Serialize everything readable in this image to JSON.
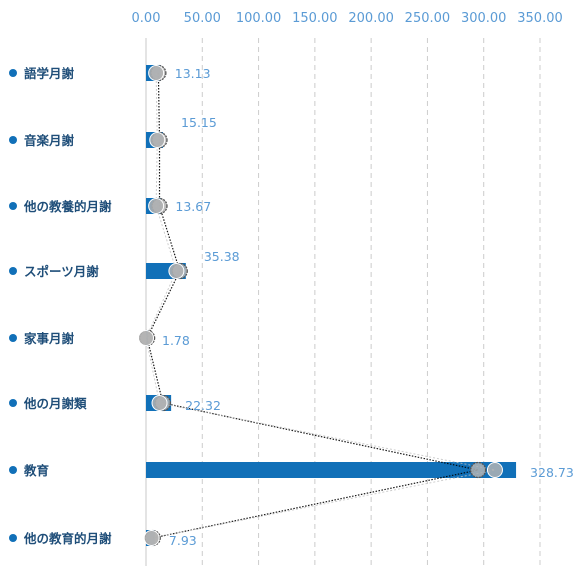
{
  "chart_data": {
    "type": "bar",
    "orientation": "horizontal",
    "categories": [
      "語学月謝",
      "音楽月謝",
      "他の教養的月謝",
      "スポーツ月謝",
      "家事月謝",
      "他の月謝類",
      "教育",
      "他の教育的月謝"
    ],
    "values": [
      13.13,
      15.15,
      13.67,
      35.38,
      1.78,
      22.32,
      328.73,
      7.93
    ],
    "x_ticks": [
      "0.00",
      "50.00",
      "100.00",
      "150.00",
      "200.00",
      "250.00",
      "300.00",
      "350.00"
    ],
    "xlim": [
      0,
      350
    ],
    "x_axis_position": "top",
    "grid": true,
    "bullet": "●",
    "colors": {
      "bar": "#1170b8",
      "tick_text": "#5b9bd5",
      "category_text": "#1f4e79",
      "bullet": "#1170b8",
      "grid": "#cccccc",
      "marker": "#b3b3b3"
    },
    "overlay_series": [
      {
        "values": [
          11,
          12,
          12,
          30,
          1,
          15,
          295,
          6
        ],
        "style": "dotted",
        "color": "#000000"
      },
      {
        "values": [
          9,
          10,
          9,
          27,
          0,
          12,
          310,
          5
        ],
        "style": "dotted",
        "color": "#c0c0c0"
      }
    ]
  }
}
